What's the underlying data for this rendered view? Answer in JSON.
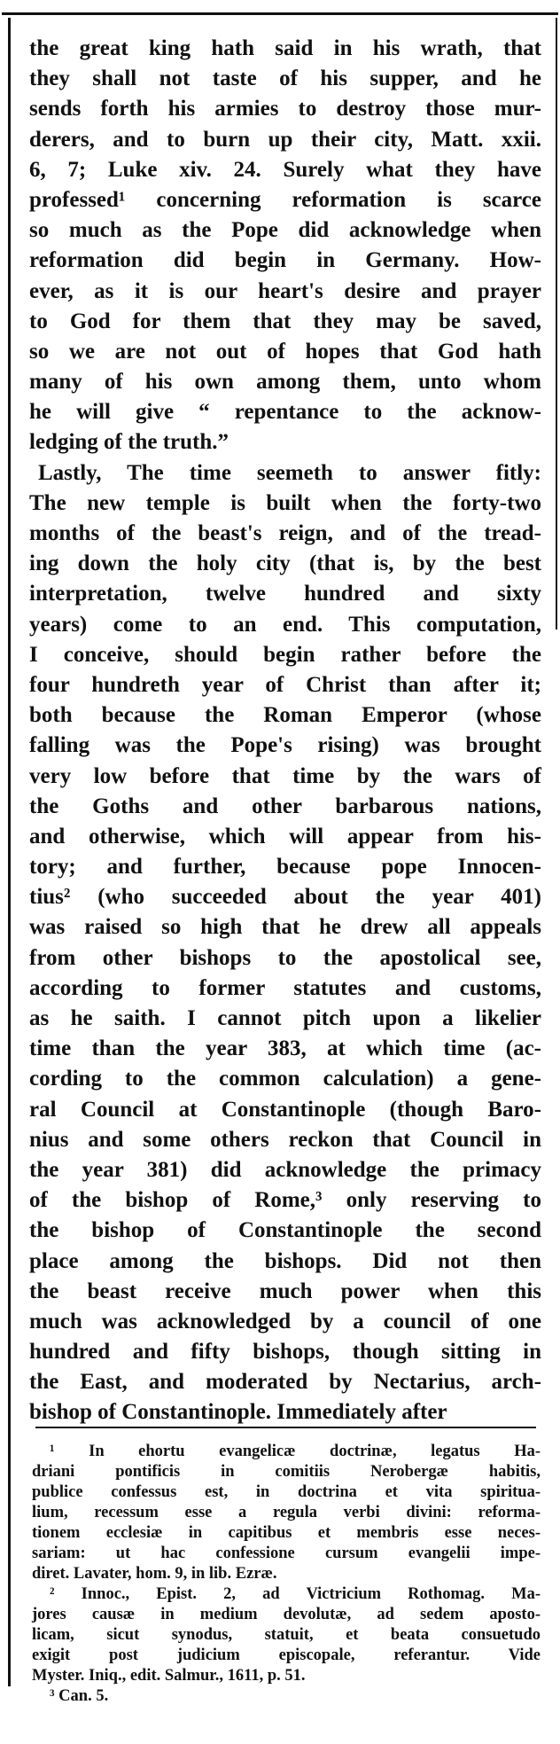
{
  "main_text": {
    "lines": [
      "the great king hath said in his wrath, that",
      "they shall not taste of his supper, and he",
      "sends forth his armies to destroy those mur-",
      "derers, and to burn up their city, Matt. xxii.",
      "6, 7; Luke xiv. 24.  Surely what they have",
      "professed¹ concerning reformation is scarce",
      "so much as the Pope did acknowledge when",
      "reformation did begin in Germany.  How-",
      "ever, as it is our heart's desire and prayer",
      "to God for them that they may be saved,",
      "so we are not out of hopes that God hath",
      "many of his own among them, unto whom",
      "he will give “ repentance to the acknow-",
      "ledging of the truth.”",
      "Lastly, The time seemeth to answer fitly:",
      "The new temple is built when the forty-two",
      "months of the beast's reign, and of the tread-",
      "ing down the holy city (that is, by the best",
      "interpretation, twelve hundred and sixty",
      "years) come to an end.  This computation,",
      "I conceive, should begin rather before the",
      "four hundreth year of Christ than after it;",
      "both because the Roman Emperor (whose",
      "falling was the Pope's rising) was brought",
      "very low before that time by the wars of",
      "the Goths and other barbarous nations,",
      "and otherwise, which will appear from his-",
      "tory; and further, because pope Innocen-",
      "tius² (who succeeded about the year 401)",
      "was raised so high that he drew all appeals",
      "from other bishops to the apostolical see,",
      "according to former statutes and customs,",
      "as he saith.  I cannot pitch upon a likelier",
      "time than the year 383, at which time (ac-",
      "cording to the common calculation) a gene-",
      "ral Council at Constantinople (though Baro-",
      "nius and some others reckon that Council in",
      "the year 381) did acknowledge the primacy",
      "of the bishop of Rome,³ only reserving to",
      "the bishop of Constantinople the second",
      "place among the bishops.  Did not then",
      "the beast receive much power when this",
      "much was acknowledged by a council of one",
      "hundred and fifty bishops, though sitting in",
      "the East, and moderated by Nectarius, arch-",
      "bishop of Constantinople.  Immediately after"
    ]
  },
  "footnotes": {
    "lines": [
      "¹ In ehortu evangelicæ doctrinæ, legatus Ha-",
      "driani pontificis in comitiis Nerobergæ habitis,",
      "publice confessus est, in doctrina et vita spiritua-",
      "lium, recessum esse a regula verbi divini: reforma-",
      "tionem ecclesiæ in capitibus et membris esse neces-",
      "sariam: ut hac confessione cursum evangelii impe-",
      "diret.  Lavater, hom. 9, in lib. Ezræ.",
      "² Innoc., Epist. 2, ad Victricium Rothomag.  Ma-",
      "jores causæ in medium devolutæ, ad sedem aposto-",
      "licam, sicut synodus, statuit, et beata consuetudo",
      "exigit post judicium episcopale, referantur.  Vide",
      "Myster. Iniq., edit. Salmur., 1611, p. 51.",
      "³ Can. 5."
    ]
  }
}
